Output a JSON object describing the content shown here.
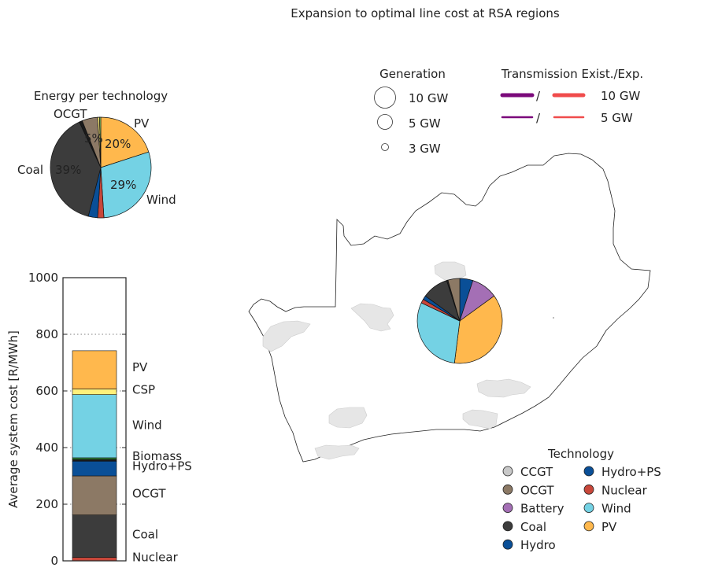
{
  "figure": {
    "title": "Expansion to optimal line cost at RSA regions"
  },
  "chart_data": [
    {
      "id": "energy_pie",
      "type": "pie",
      "title": "Energy per technology",
      "slices": [
        {
          "label": "PV",
          "value": 20,
          "pct_label": "20%",
          "color": "#ffb84d"
        },
        {
          "label": "Wind",
          "value": 29,
          "pct_label": "29%",
          "color": "#74d2e4"
        },
        {
          "label": "Nuclear",
          "value": 2,
          "pct_label": "",
          "color": "#c8473a"
        },
        {
          "label": "Hydro+PS",
          "value": 3,
          "pct_label": "",
          "color": "#0a4f97"
        },
        {
          "label": "Coal",
          "value": 39,
          "pct_label": "39%",
          "color": "#3c3c3c"
        },
        {
          "label": "",
          "value": 1,
          "pct_label": "",
          "color": "#1a1a1a"
        },
        {
          "label": "OCGT",
          "value": 5,
          "pct_label": "5%",
          "color": "#8c7965"
        },
        {
          "label": "CSP",
          "value": 0.6,
          "pct_label": "",
          "color": "#fff07a"
        },
        {
          "label": "",
          "value": 0.4,
          "pct_label": "",
          "color": "#8ed16c"
        }
      ],
      "outside_labels": [
        "PV",
        "Wind",
        "Coal",
        "OCGT"
      ]
    },
    {
      "id": "cost_bar",
      "type": "bar",
      "ylabel": "Average system cost [R/MWh]",
      "ylim": [
        0,
        1000
      ],
      "yticks": [
        0,
        200,
        400,
        600,
        800,
        1000
      ],
      "grid": "horizontal dotted",
      "stack": [
        {
          "name": "Nuclear",
          "value": 12,
          "color": "#c8473a"
        },
        {
          "name": "Coal",
          "value": 150,
          "color": "#3c3c3c"
        },
        {
          "name": "OCGT",
          "value": 138,
          "color": "#8c7965"
        },
        {
          "name": "Hydro+PS",
          "value": 52,
          "color": "#0a4f97"
        },
        {
          "name": "",
          "value": 6,
          "color": "#1a1a1a"
        },
        {
          "name": "Biomass",
          "value": 6,
          "color": "#2d8a3a"
        },
        {
          "name": "Wind",
          "value": 223,
          "color": "#74d2e4"
        },
        {
          "name": "CSP",
          "value": 20,
          "color": "#fff07a"
        },
        {
          "name": "PV",
          "value": 135,
          "color": "#ffb84d"
        }
      ],
      "labels": [
        {
          "text": "PV",
          "value": 683
        },
        {
          "text": "CSP",
          "value": 604
        },
        {
          "text": "Wind",
          "value": 479
        },
        {
          "text": "Biomass",
          "value": 369
        },
        {
          "text": "Hydro+PS",
          "value": 335
        },
        {
          "text": "OCGT",
          "value": 237
        },
        {
          "text": "Coal",
          "value": 93
        },
        {
          "text": "Nuclear",
          "value": 13
        }
      ]
    },
    {
      "id": "map_pie",
      "type": "pie",
      "slices": [
        {
          "label": "Hydro",
          "value": 5,
          "color": "#0a4f97"
        },
        {
          "label": "Battery",
          "value": 10,
          "color": "#a46fb5"
        },
        {
          "label": "PV",
          "value": 37,
          "color": "#ffb84d"
        },
        {
          "label": "Wind",
          "value": 30,
          "color": "#74d2e4"
        },
        {
          "label": "Nuclear",
          "value": 1.5,
          "color": "#c8473a"
        },
        {
          "label": "Hydro+PS",
          "value": 1.5,
          "color": "#0a4f97"
        },
        {
          "label": "Coal",
          "value": 10,
          "color": "#3c3c3c"
        },
        {
          "label": "",
          "value": 0.5,
          "color": "#222222"
        },
        {
          "label": "OCGT",
          "value": 4.5,
          "color": "#8c7965"
        }
      ]
    }
  ],
  "legend_generation": {
    "title": "Generation",
    "items": [
      {
        "label": "10 GW",
        "gw": 10
      },
      {
        "label": "5 GW",
        "gw": 5
      },
      {
        "label": "3 GW",
        "gw": 3
      }
    ]
  },
  "legend_transmission": {
    "title": "Transmission Exist./Exp.",
    "separator": "/",
    "existing_color": "#7b0a7b",
    "expansion_color": "#f04c4c",
    "items": [
      {
        "label": "10 GW",
        "gw": 10
      },
      {
        "label": "5 GW",
        "gw": 5
      }
    ]
  },
  "legend_technology": {
    "title": "Technology",
    "items": [
      {
        "label": "CCGT",
        "color": "#c8c8c8"
      },
      {
        "label": "OCGT",
        "color": "#8c7965"
      },
      {
        "label": "Battery",
        "color": "#a46fb5"
      },
      {
        "label": "Coal",
        "color": "#3c3c3c"
      },
      {
        "label": "Hydro",
        "color": "#0a4f97"
      },
      {
        "label": "Hydro+PS",
        "color": "#0a4f97"
      },
      {
        "label": "Nuclear",
        "color": "#c8473a"
      },
      {
        "label": "Wind",
        "color": "#74d2e4"
      },
      {
        "label": "PV",
        "color": "#ffb84d"
      }
    ]
  }
}
